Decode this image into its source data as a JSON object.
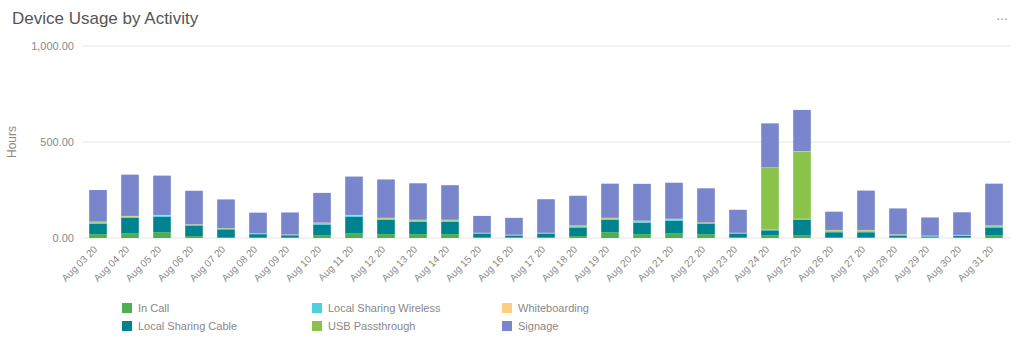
{
  "chart_data": {
    "type": "bar",
    "title": "Device Usage by Activity",
    "annotations": [
      "..."
    ],
    "y_label": "Hours",
    "stacked": true,
    "grid": true,
    "legend": "bottom",
    "categories": [
      "Aug 03 20",
      "Aug 04 20",
      "Aug 05 20",
      "Aug 06 20",
      "Aug 07 20",
      "Aug 08 20",
      "Aug 09 20",
      "Aug 10 20",
      "Aug 11 20",
      "Aug 12 20",
      "Aug 13 20",
      "Aug 14 20",
      "Aug 15 20",
      "Aug 16 20",
      "Aug 17 20",
      "Aug 18 20",
      "Aug 19 20",
      "Aug 20 20",
      "Aug 21 20",
      "Aug 22 20",
      "Aug 23 20",
      "Aug 24 20",
      "Aug 25 20",
      "Aug 26 20",
      "Aug 27 20",
      "Aug 28 20",
      "Aug 29 20",
      "Aug 30 20",
      "Aug 31 20"
    ],
    "series": [
      {
        "name": "In Call",
        "color": "#4caf50",
        "values": [
          20,
          25,
          30,
          10,
          5,
          2,
          2,
          15,
          25,
          20,
          20,
          20,
          5,
          3,
          5,
          10,
          30,
          20,
          25,
          20,
          5,
          15,
          15,
          5,
          5,
          5,
          3,
          3,
          15
        ]
      },
      {
        "name": "Local Sharing Cable",
        "color": "#00838f",
        "values": [
          55,
          80,
          80,
          55,
          40,
          18,
          12,
          55,
          85,
          75,
          65,
          65,
          18,
          10,
          18,
          45,
          65,
          60,
          65,
          55,
          18,
          25,
          80,
          25,
          25,
          8,
          5,
          8,
          40
        ]
      },
      {
        "name": "Local Sharing Wireless",
        "color": "#4dd0e1",
        "values": [
          5,
          5,
          5,
          3,
          3,
          2,
          2,
          5,
          5,
          5,
          5,
          5,
          2,
          2,
          2,
          5,
          5,
          5,
          5,
          3,
          2,
          5,
          5,
          5,
          5,
          2,
          2,
          2,
          5
        ]
      },
      {
        "name": "USB Passthrough",
        "color": "#8bc34a",
        "values": [
          3,
          3,
          3,
          2,
          2,
          1,
          1,
          3,
          3,
          3,
          3,
          3,
          1,
          1,
          1,
          3,
          3,
          3,
          3,
          2,
          1,
          320,
          350,
          5,
          5,
          3,
          1,
          2,
          3
        ]
      },
      {
        "name": "Whiteboarding",
        "color": "#ffcc80",
        "values": [
          2,
          2,
          2,
          1,
          1,
          1,
          1,
          2,
          2,
          2,
          2,
          2,
          1,
          1,
          1,
          2,
          2,
          2,
          2,
          1,
          1,
          2,
          2,
          2,
          2,
          1,
          1,
          1,
          2
        ]
      },
      {
        "name": "Signage",
        "color": "#7986cb",
        "values": [
          165,
          215,
          205,
          175,
          150,
          108,
          115,
          155,
          200,
          200,
          190,
          180,
          88,
          88,
          175,
          155,
          178,
          192,
          188,
          178,
          120,
          230,
          215,
          95,
          205,
          135,
          95,
          118,
          218
        ]
      }
    ],
    "ylim": [
      0,
      1000
    ],
    "yticks": [
      {
        "value": 0,
        "label": "0.00"
      },
      {
        "value": 500,
        "label": "500.00"
      },
      {
        "value": 1000,
        "label": "1,000.00"
      }
    ]
  }
}
